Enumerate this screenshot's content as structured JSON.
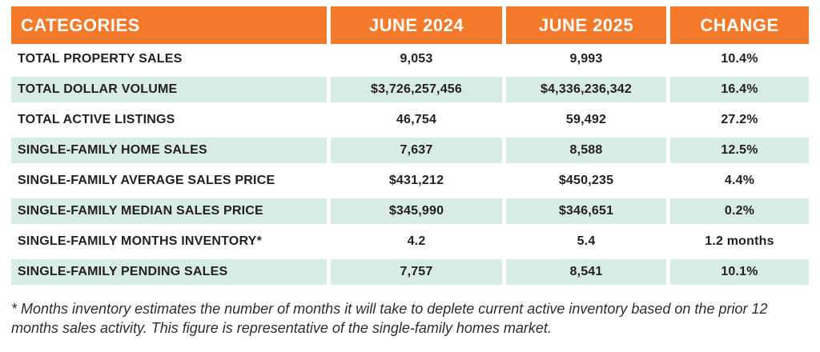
{
  "table": {
    "headers": {
      "category": "CATEGORIES",
      "june2024": "JUNE 2024",
      "june2025": "JUNE 2025",
      "change": "CHANGE"
    },
    "rows": [
      {
        "category": "TOTAL PROPERTY SALES",
        "june2024": "9,053",
        "june2025": "9,993",
        "change": "10.4%"
      },
      {
        "category": "TOTAL DOLLAR VOLUME",
        "june2024": "$3,726,257,456",
        "june2025": "$4,336,236,342",
        "change": "16.4%"
      },
      {
        "category": "TOTAL ACTIVE LISTINGS",
        "june2024": "46,754",
        "june2025": "59,492",
        "change": "27.2%"
      },
      {
        "category": "SINGLE-FAMILY HOME SALES",
        "june2024": "7,637",
        "june2025": "8,588",
        "change": "12.5%"
      },
      {
        "category": "SINGLE-FAMILY AVERAGE SALES PRICE",
        "june2024": "$431,212",
        "june2025": "$450,235",
        "change": "4.4%"
      },
      {
        "category": "SINGLE-FAMILY MEDIAN SALES PRICE",
        "june2024": "$345,990",
        "june2025": "$346,651",
        "change": "0.2%"
      },
      {
        "category": "SINGLE-FAMILY MONTHS INVENTORY*",
        "june2024": "4.2",
        "june2025": "5.4",
        "change": "1.2 months"
      },
      {
        "category": "SINGLE-FAMILY PENDING SALES",
        "june2024": "7,757",
        "june2025": "8,541",
        "change": "10.1%"
      }
    ]
  },
  "footnote": "* Months inventory estimates the number of months it will take to deplete current active inventory based on the prior 12 months sales activity. This figure is representative of the single-family homes market.",
  "colors": {
    "header_bg": "#F37A2B",
    "row_alt_bg": "#D8ECE5",
    "text": "#231F20"
  }
}
